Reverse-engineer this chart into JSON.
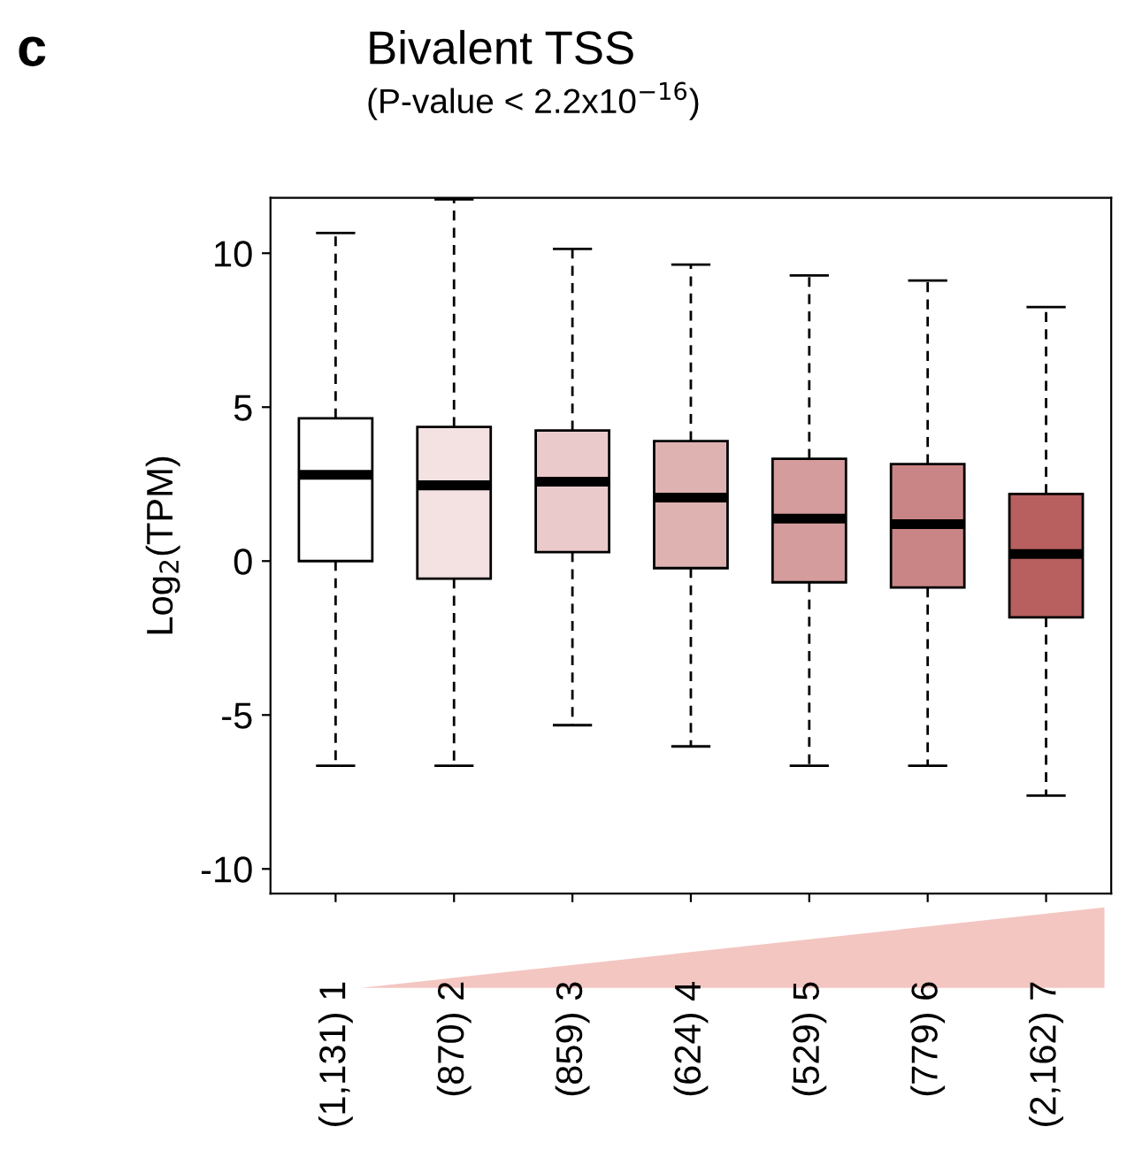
{
  "chart_data": {
    "type": "box",
    "title": "Bivalent TSS",
    "subtitle": "(P-value < 2.2x10$^{−16}$)",
    "ylabel": "Log$_{2}$(TPM)",
    "annotations": [
      "c"
    ],
    "categories": [
      "(1,131) 1",
      "(870) 2",
      "(859) 3",
      "(624) 4",
      "(529) 5",
      "(779) 6",
      "(2,162) 7"
    ],
    "colors": [
      "#ffffff",
      "#f4e1e1",
      "#eacaca",
      "#dfb2b2",
      "#d49c9c",
      "#c98585",
      "#b85f5f"
    ],
    "boxes": [
      {
        "low": -6.65,
        "q1": 0.0,
        "median": 2.8,
        "q3": 4.64,
        "high": 10.66
      },
      {
        "low": -6.65,
        "q1": -0.57,
        "median": 2.46,
        "q3": 4.36,
        "high": 11.75
      },
      {
        "low": -5.33,
        "q1": 0.29,
        "median": 2.58,
        "q3": 4.24,
        "high": 10.14
      },
      {
        "low": -6.02,
        "q1": -0.23,
        "median": 2.06,
        "q3": 3.9,
        "high": 9.63
      },
      {
        "low": -6.65,
        "q1": -0.69,
        "median": 1.38,
        "q3": 3.32,
        "high": 9.28
      },
      {
        "low": -6.65,
        "q1": -0.86,
        "median": 1.2,
        "q3": 3.15,
        "high": 9.11
      },
      {
        "low": -7.62,
        "q1": -1.83,
        "median": 0.23,
        "q3": 2.18,
        "high": 8.25
      }
    ],
    "ylim": [
      -10.8,
      11.8
    ],
    "yticks": [
      {
        "value": 10,
        "label": "10"
      },
      {
        "value": 5,
        "label": "5"
      },
      {
        "value": 0,
        "label": "0"
      },
      {
        "value": -5,
        "label": "-5"
      },
      {
        "value": -10,
        "label": "-10"
      }
    ],
    "grid": false,
    "legend": false
  }
}
